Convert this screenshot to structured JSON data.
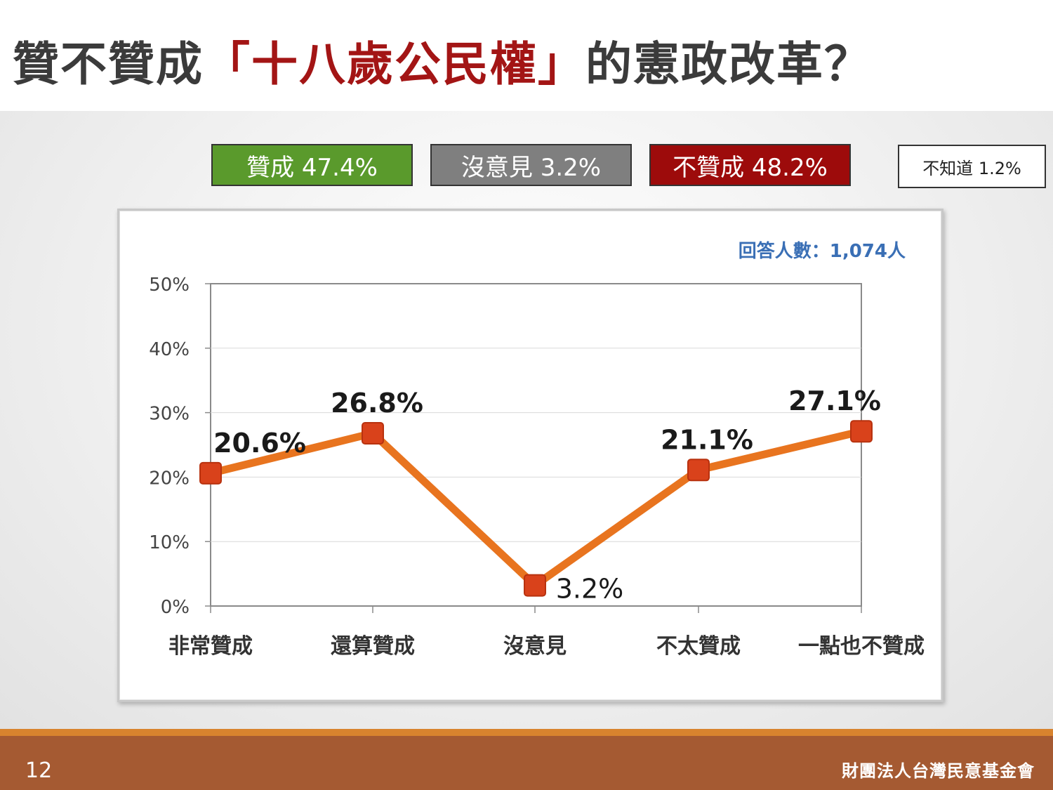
{
  "title": {
    "prefix": "贊不贊成",
    "highlight": "「十八歲公民權」",
    "suffix": "的憲政改革？"
  },
  "summary": {
    "agree": "贊成 47.4%",
    "neutral": "沒意見 3.2%",
    "disagree": "不贊成 48.2%",
    "unknown": "不知道 1.2%"
  },
  "colors": {
    "agree": "#5a9a2c",
    "neutral": "#7f7f7f",
    "disagree": "#9d0b0b",
    "title_highlight": "#a31515",
    "line": "#e8741f",
    "marker": "#d9421b",
    "footer": "#a55a32"
  },
  "chart_data": {
    "type": "line",
    "categories": [
      "非常贊成",
      "還算贊成",
      "沒意見",
      "不太贊成",
      "一點也不贊成"
    ],
    "values": [
      20.6,
      26.8,
      3.2,
      21.1,
      27.1
    ],
    "data_labels": [
      "20.6%",
      "26.8%",
      "3.2%",
      "21.1%",
      "27.1%"
    ],
    "yticks": [
      "0%",
      "10%",
      "20%",
      "30%",
      "40%",
      "50%"
    ],
    "ylim": [
      0,
      50
    ],
    "grid": true,
    "annotation": "回答人數：1,074人"
  },
  "footer": {
    "page_number": "12",
    "organization": "財團法人台灣民意基金會"
  }
}
